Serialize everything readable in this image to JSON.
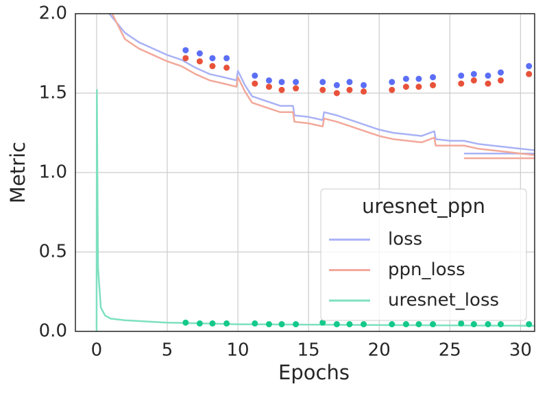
{
  "chart_data": {
    "type": "line",
    "xlabel": "Epochs",
    "ylabel": "Metric",
    "xlim": [
      -1.5,
      31.0
    ],
    "ylim": [
      0,
      2.0
    ],
    "xticks": [
      0,
      5,
      10,
      15,
      20,
      25,
      30
    ],
    "yticks": [
      {
        "value": 0,
        "label": "0.0"
      },
      {
        "value": 0.5,
        "label": "0.5"
      },
      {
        "value": 1.0,
        "label": "1.0"
      },
      {
        "value": 1.5,
        "label": "1.5"
      },
      {
        "value": 2.0,
        "label": "2.0"
      }
    ],
    "grid": true,
    "legend_title": "uresnet_ppn",
    "legend_loc": "lower right",
    "series": [
      {
        "name": "loss",
        "color": "#a9b2f5",
        "x": [
          0.9,
          2,
          3,
          4,
          5,
          6,
          7,
          8,
          9,
          9.9,
          10,
          10.5,
          11,
          12,
          13,
          13.9,
          14,
          15,
          16,
          16.1,
          17,
          18,
          19,
          20,
          21,
          22,
          23,
          23.9,
          24,
          25,
          26,
          27,
          28,
          29,
          30,
          31,
          null,
          26,
          31
        ],
        "values": [
          2.0,
          1.88,
          1.82,
          1.78,
          1.74,
          1.71,
          1.66,
          1.62,
          1.6,
          1.58,
          1.64,
          1.55,
          1.48,
          1.45,
          1.42,
          1.42,
          1.36,
          1.35,
          1.33,
          1.38,
          1.36,
          1.33,
          1.3,
          1.27,
          1.25,
          1.24,
          1.23,
          1.26,
          1.21,
          1.2,
          1.2,
          1.18,
          1.17,
          1.16,
          1.15,
          1.14,
          null,
          1.12,
          1.12
        ]
      },
      {
        "name": "ppn_loss",
        "color": "#f2a89a",
        "x": [
          1.1,
          2,
          3,
          4,
          5,
          6,
          7,
          8,
          9,
          9.9,
          10,
          10.5,
          11,
          12,
          13,
          13.9,
          14,
          15,
          16,
          16.1,
          17,
          18,
          19,
          20,
          21,
          22,
          23,
          23.9,
          24,
          25,
          26,
          27,
          28,
          29,
          30,
          31,
          null,
          26,
          31
        ],
        "values": [
          2.0,
          1.84,
          1.78,
          1.74,
          1.7,
          1.67,
          1.62,
          1.58,
          1.56,
          1.54,
          1.6,
          1.51,
          1.44,
          1.41,
          1.38,
          1.38,
          1.32,
          1.31,
          1.29,
          1.34,
          1.32,
          1.29,
          1.26,
          1.23,
          1.21,
          1.2,
          1.19,
          1.22,
          1.17,
          1.17,
          1.17,
          1.15,
          1.14,
          1.13,
          1.12,
          1.11,
          null,
          1.09,
          1.09
        ]
      },
      {
        "name": "uresnet_loss",
        "color": "#7de0c0",
        "x": [
          0,
          0.02,
          0.1,
          0.3,
          0.6,
          1,
          2,
          5,
          10,
          20,
          31
        ],
        "values": [
          0,
          1.52,
          0.4,
          0.15,
          0.1,
          0.08,
          0.07,
          0.055,
          0.045,
          0.04,
          0.035
        ]
      }
    ],
    "points": [
      {
        "color": "#5b6ef5",
        "x": [
          6.3,
          7.3,
          8.2,
          9.2,
          11.2,
          12.2,
          13.1,
          14.1,
          16.0,
          17.0,
          17.9,
          18.9,
          20.9,
          21.9,
          22.8,
          23.8,
          25.8,
          26.7,
          27.7,
          28.6,
          30.6
        ],
        "values": [
          1.77,
          1.75,
          1.72,
          1.72,
          1.61,
          1.58,
          1.57,
          1.57,
          1.57,
          1.55,
          1.57,
          1.55,
          1.57,
          1.59,
          1.59,
          1.6,
          1.61,
          1.62,
          1.61,
          1.63,
          1.67
        ]
      },
      {
        "color": "#e8523a",
        "x": [
          6.3,
          7.3,
          8.2,
          9.2,
          11.2,
          12.2,
          13.1,
          14.1,
          16.0,
          17.0,
          17.9,
          18.9,
          20.9,
          21.9,
          22.8,
          23.8,
          25.8,
          26.7,
          27.7,
          28.6,
          30.6
        ],
        "values": [
          1.72,
          1.7,
          1.67,
          1.66,
          1.56,
          1.54,
          1.52,
          1.53,
          1.52,
          1.5,
          1.52,
          1.51,
          1.52,
          1.54,
          1.54,
          1.55,
          1.56,
          1.58,
          1.56,
          1.58,
          1.62
        ]
      },
      {
        "color": "#14c98a",
        "x": [
          6.3,
          7.3,
          8.2,
          9.2,
          11.2,
          12.2,
          13.1,
          14.1,
          16.0,
          17.0,
          17.9,
          18.9,
          20.9,
          21.9,
          22.8,
          23.8,
          25.8,
          26.7,
          27.7,
          28.6,
          30.6
        ],
        "values": [
          0.055,
          0.05,
          0.05,
          0.05,
          0.05,
          0.045,
          0.045,
          0.045,
          0.055,
          0.045,
          0.045,
          0.045,
          0.045,
          0.045,
          0.045,
          0.045,
          0.05,
          0.045,
          0.045,
          0.045,
          0.045
        ]
      }
    ]
  }
}
